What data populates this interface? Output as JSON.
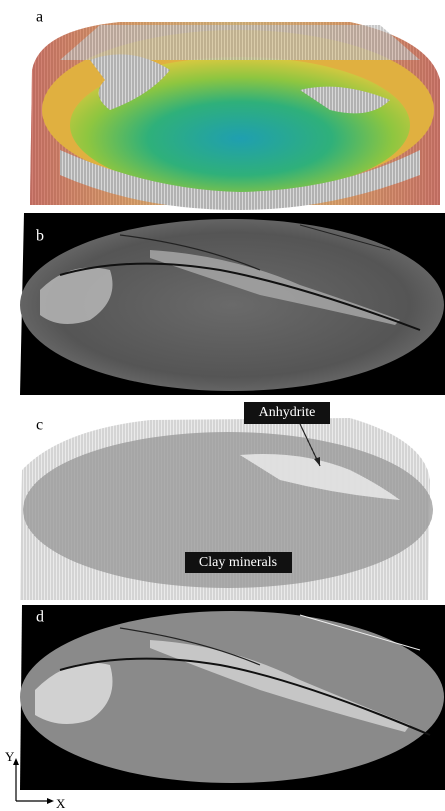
{
  "panels": [
    {
      "label": "a"
    },
    {
      "label": "b"
    },
    {
      "label": "c"
    },
    {
      "label": "d"
    }
  ],
  "annotations": [
    "Anhydrite",
    "Clay minerals"
  ],
  "axes": {
    "y": "Y",
    "x": "X"
  }
}
